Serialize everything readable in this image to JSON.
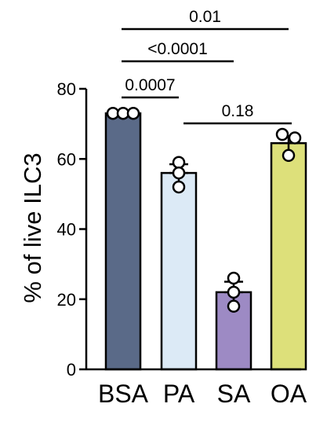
{
  "chart_data": {
    "type": "bar",
    "categories": [
      "BSA",
      "PA",
      "SA",
      "OA"
    ],
    "values": [
      73,
      56,
      22,
      64.5
    ],
    "errors": [
      0.5,
      2.5,
      3,
      2
    ],
    "points": [
      [
        73,
        73,
        73
      ],
      [
        59,
        56,
        52
      ],
      [
        26,
        22,
        18
      ],
      [
        67,
        66,
        61
      ]
    ],
    "colors": [
      "#5a6a88",
      "#dceaf6",
      "#9d8ac4",
      "#dde07a"
    ],
    "ylabel": "% of live ILC3",
    "xlabel": "",
    "ylim": [
      0,
      80
    ],
    "yticks": [
      "0",
      "20",
      "40",
      "60",
      "80"
    ],
    "comparisons": [
      {
        "from": 0,
        "to": 3,
        "label": "0.01"
      },
      {
        "from": 0,
        "to": 2,
        "label": "<0.0001"
      },
      {
        "from": 0,
        "to": 1,
        "label": "0.0007"
      },
      {
        "from": 1,
        "to": 3,
        "label": "0.18"
      }
    ],
    "grid": false,
    "legend": "none"
  }
}
